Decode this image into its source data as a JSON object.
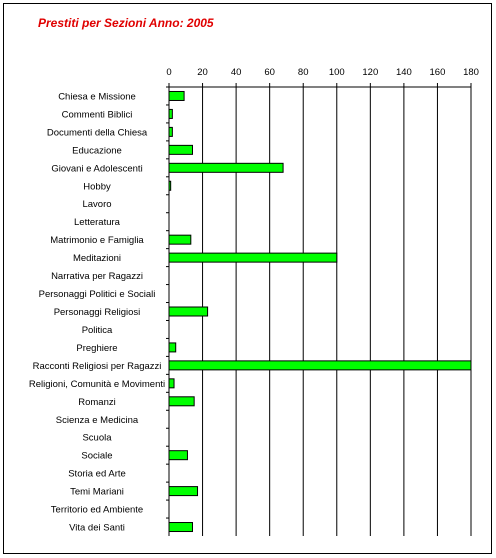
{
  "chart_data": {
    "type": "bar",
    "orientation": "horizontal",
    "title": "Prestiti per Sezioni Anno: 2005",
    "xlabel": "",
    "ylabel": "",
    "xlim": [
      0,
      180
    ],
    "ticks": [
      "0",
      "20",
      "40",
      "60",
      "80",
      "100",
      "120",
      "140",
      "160",
      "180"
    ],
    "tick_values": [
      0,
      20,
      40,
      60,
      80,
      100,
      120,
      140,
      160,
      180
    ],
    "axis_position": "top",
    "grid": true,
    "legend": "none",
    "categories": [
      "Chiesa e Missione",
      "Commenti Biblici",
      "Documenti della Chiesa",
      "Educazione",
      "Giovani e Adolescenti",
      "Hobby",
      "Lavoro",
      "Letteratura",
      "Matrimonio e Famiglia",
      "Meditazioni",
      "Narrativa per Ragazzi",
      "Personaggi Politici e Sociali",
      "Personaggi Religiosi",
      "Politica",
      "Preghiere",
      "Racconti Religiosi per Ragazzi",
      "Religioni, Comunità e Movimenti",
      "Romanzi",
      "Scienza e Medicina",
      "Scuola",
      "Sociale",
      "Storia ed Arte",
      "Temi Mariani",
      "Territorio ed Ambiente",
      "Vita dei Santi"
    ],
    "values": [
      9,
      2,
      2,
      14,
      68,
      1,
      0,
      0,
      13,
      100,
      0,
      0,
      23,
      0,
      4,
      180,
      3,
      15,
      0,
      0,
      11,
      0,
      17,
      0,
      14
    ],
    "bar_color": "#00ff00",
    "title_color": "#e00000"
  }
}
